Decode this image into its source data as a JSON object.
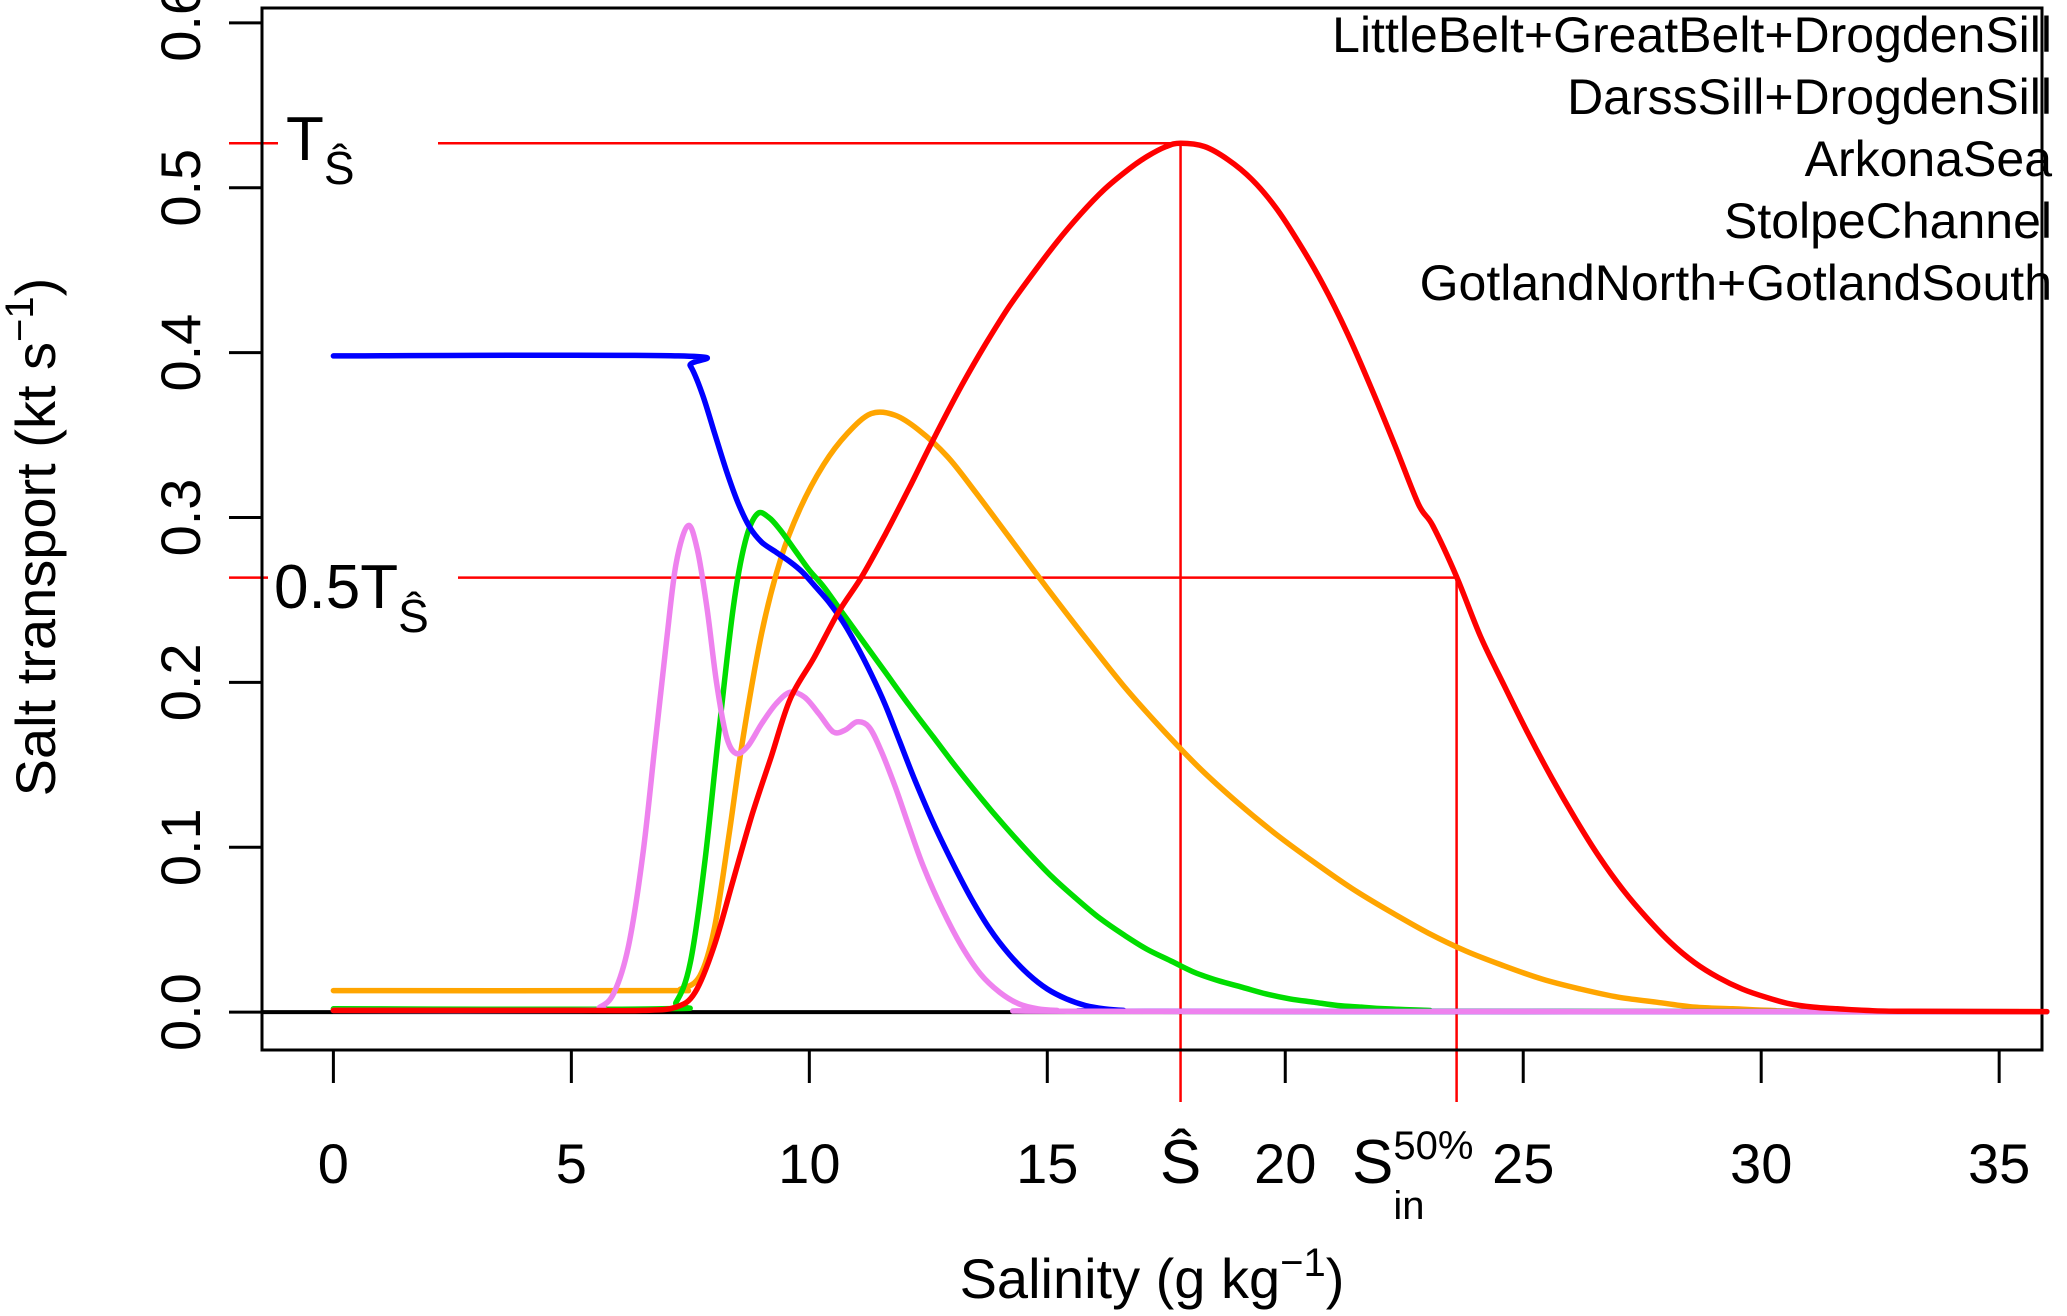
{
  "chart_data": {
    "type": "line",
    "title": "",
    "xlabel": {
      "main": "Salinity (g kg",
      "sup": "−1",
      "end": ")"
    },
    "ylabel": {
      "main": "Salt transport (kt s",
      "sup": "−1",
      "end": ")"
    },
    "x_ticks": [
      "0",
      "5",
      "10",
      "15",
      "20",
      "25",
      "30",
      "35"
    ],
    "x_tick_values": [
      0,
      5,
      10,
      15,
      20,
      25,
      30,
      35
    ],
    "y_ticks": [
      "0.0",
      "0.1",
      "0.2",
      "0.3",
      "0.4",
      "0.5",
      "0.6"
    ],
    "y_tick_values": [
      0.0,
      0.1,
      0.2,
      0.3,
      0.4,
      0.5,
      0.6
    ],
    "xlim": [
      -1.5,
      35.9
    ],
    "ylim": [
      -0.023,
      0.609
    ],
    "grid": false,
    "legend_position": "top-right",
    "baseline_value": 0,
    "series": [
      {
        "name": "LittleBelt+GreatBelt+DrogdenSill",
        "color": "#ff0000",
        "points": [
          [
            0,
            0.001
          ],
          [
            5,
            0.001
          ],
          [
            6.5,
            0.001
          ],
          [
            7.2,
            0.003
          ],
          [
            7.6,
            0.012
          ],
          [
            8.0,
            0.04
          ],
          [
            8.4,
            0.08
          ],
          [
            8.8,
            0.12
          ],
          [
            9.2,
            0.155
          ],
          [
            9.6,
            0.19
          ],
          [
            10.1,
            0.215
          ],
          [
            10.6,
            0.242
          ],
          [
            11.1,
            0.264
          ],
          [
            11.6,
            0.29
          ],
          [
            12.1,
            0.318
          ],
          [
            12.6,
            0.347
          ],
          [
            13.2,
            0.38
          ],
          [
            13.7,
            0.405
          ],
          [
            14.2,
            0.428
          ],
          [
            14.7,
            0.448
          ],
          [
            15.2,
            0.467
          ],
          [
            15.7,
            0.484
          ],
          [
            16.2,
            0.499
          ],
          [
            16.7,
            0.511
          ],
          [
            17.1,
            0.519
          ],
          [
            17.5,
            0.525
          ],
          [
            17.8,
            0.527
          ],
          [
            18.3,
            0.525
          ],
          [
            18.8,
            0.517
          ],
          [
            19.3,
            0.505
          ],
          [
            19.8,
            0.488
          ],
          [
            20.3,
            0.466
          ],
          [
            20.8,
            0.441
          ],
          [
            21.3,
            0.412
          ],
          [
            21.8,
            0.379
          ],
          [
            22.3,
            0.344
          ],
          [
            22.8,
            0.308
          ],
          [
            23.1,
            0.295
          ],
          [
            23.6,
            0.264
          ],
          [
            24.1,
            0.228
          ],
          [
            24.6,
            0.198
          ],
          [
            25.1,
            0.169
          ],
          [
            25.6,
            0.142
          ],
          [
            26.1,
            0.117
          ],
          [
            26.6,
            0.094
          ],
          [
            27.1,
            0.074
          ],
          [
            27.6,
            0.057
          ],
          [
            28.1,
            0.042
          ],
          [
            28.6,
            0.03
          ],
          [
            29.1,
            0.021
          ],
          [
            29.6,
            0.014
          ],
          [
            30.1,
            0.009
          ],
          [
            30.6,
            0.005
          ],
          [
            31.1,
            0.003
          ],
          [
            31.6,
            0.002
          ],
          [
            32.2,
            0.001
          ],
          [
            33,
            0.0005
          ],
          [
            36,
            0.0003
          ]
        ]
      },
      {
        "name": "DarssSill+DrogdenSill",
        "color": "#ffa500",
        "points": [
          [
            0,
            0.013
          ],
          [
            6.8,
            0.013
          ],
          [
            7.3,
            0.014
          ],
          [
            7.7,
            0.022
          ],
          [
            8.0,
            0.05
          ],
          [
            8.3,
            0.105
          ],
          [
            8.6,
            0.165
          ],
          [
            9.0,
            0.23
          ],
          [
            9.4,
            0.275
          ],
          [
            9.8,
            0.305
          ],
          [
            10.3,
            0.332
          ],
          [
            10.8,
            0.351
          ],
          [
            11.3,
            0.363
          ],
          [
            11.8,
            0.362
          ],
          [
            12.3,
            0.353
          ],
          [
            12.9,
            0.337
          ],
          [
            13.5,
            0.315
          ],
          [
            14.2,
            0.288
          ],
          [
            15.0,
            0.257
          ],
          [
            15.8,
            0.227
          ],
          [
            16.6,
            0.198
          ],
          [
            17.4,
            0.172
          ],
          [
            18.2,
            0.148
          ],
          [
            19.0,
            0.127
          ],
          [
            19.8,
            0.108
          ],
          [
            20.6,
            0.091
          ],
          [
            21.4,
            0.075
          ],
          [
            22.2,
            0.061
          ],
          [
            23.0,
            0.048
          ],
          [
            23.8,
            0.037
          ],
          [
            24.6,
            0.028
          ],
          [
            25.4,
            0.02
          ],
          [
            26.2,
            0.014
          ],
          [
            27.0,
            0.009
          ],
          [
            27.8,
            0.006
          ],
          [
            28.6,
            0.003
          ],
          [
            29.4,
            0.002
          ],
          [
            30.2,
            0.001
          ],
          [
            31,
            0.0005
          ],
          [
            36,
            0.0002
          ]
        ]
      },
      {
        "name": "ArkonaSea",
        "color": "#00dd00",
        "points": [
          [
            0,
            0.002
          ],
          [
            6.9,
            0.002
          ],
          [
            7.2,
            0.006
          ],
          [
            7.5,
            0.03
          ],
          [
            7.8,
            0.09
          ],
          [
            8.1,
            0.17
          ],
          [
            8.4,
            0.245
          ],
          [
            8.65,
            0.285
          ],
          [
            8.9,
            0.302
          ],
          [
            9.15,
            0.3
          ],
          [
            9.4,
            0.292
          ],
          [
            9.7,
            0.28
          ],
          [
            10.0,
            0.268
          ],
          [
            10.3,
            0.258
          ],
          [
            10.7,
            0.242
          ],
          [
            11.1,
            0.226
          ],
          [
            11.6,
            0.206
          ],
          [
            12.1,
            0.186
          ],
          [
            12.6,
            0.167
          ],
          [
            13.1,
            0.148
          ],
          [
            13.6,
            0.13
          ],
          [
            14.1,
            0.113
          ],
          [
            14.6,
            0.097
          ],
          [
            15.1,
            0.082
          ],
          [
            15.6,
            0.069
          ],
          [
            16.1,
            0.057
          ],
          [
            16.6,
            0.047
          ],
          [
            17.1,
            0.038
          ],
          [
            17.6,
            0.031
          ],
          [
            18.1,
            0.024
          ],
          [
            18.6,
            0.019
          ],
          [
            19.1,
            0.015
          ],
          [
            19.6,
            0.011
          ],
          [
            20.1,
            0.008
          ],
          [
            20.6,
            0.006
          ],
          [
            21.1,
            0.004
          ],
          [
            21.6,
            0.003
          ],
          [
            22.1,
            0.002
          ],
          [
            23,
            0.001
          ],
          [
            24,
            0.0005
          ],
          [
            36,
            0.0002
          ]
        ]
      },
      {
        "name": "StolpeChannel",
        "color": "#0000ff",
        "points": [
          [
            0,
            0.398
          ],
          [
            7.25,
            0.398
          ],
          [
            7.5,
            0.392
          ],
          [
            7.75,
            0.375
          ],
          [
            8.0,
            0.352
          ],
          [
            8.25,
            0.329
          ],
          [
            8.5,
            0.309
          ],
          [
            8.75,
            0.294
          ],
          [
            9.0,
            0.285
          ],
          [
            9.3,
            0.279
          ],
          [
            9.6,
            0.273
          ],
          [
            9.85,
            0.267
          ],
          [
            10.1,
            0.259
          ],
          [
            10.4,
            0.249
          ],
          [
            10.7,
            0.237
          ],
          [
            11.0,
            0.222
          ],
          [
            11.3,
            0.205
          ],
          [
            11.6,
            0.186
          ],
          [
            11.9,
            0.164
          ],
          [
            12.2,
            0.142
          ],
          [
            12.6,
            0.115
          ],
          [
            13.0,
            0.091
          ],
          [
            13.4,
            0.069
          ],
          [
            13.8,
            0.05
          ],
          [
            14.2,
            0.035
          ],
          [
            14.6,
            0.023
          ],
          [
            15.0,
            0.014
          ],
          [
            15.4,
            0.008
          ],
          [
            15.8,
            0.004
          ],
          [
            16.2,
            0.002
          ],
          [
            16.6,
            0.001
          ],
          [
            17.2,
            0.0005
          ],
          [
            36,
            0.0002
          ]
        ]
      },
      {
        "name": "GotlandNorth+GotlandSouth",
        "color": "#ee82ee",
        "points": [
          [
            0,
            0.001
          ],
          [
            5.2,
            0.001
          ],
          [
            5.6,
            0.003
          ],
          [
            5.9,
            0.012
          ],
          [
            6.2,
            0.04
          ],
          [
            6.5,
            0.095
          ],
          [
            6.75,
            0.16
          ],
          [
            7.0,
            0.225
          ],
          [
            7.2,
            0.272
          ],
          [
            7.45,
            0.295
          ],
          [
            7.65,
            0.28
          ],
          [
            7.85,
            0.245
          ],
          [
            8.05,
            0.2
          ],
          [
            8.25,
            0.168
          ],
          [
            8.45,
            0.157
          ],
          [
            8.7,
            0.161
          ],
          [
            9.0,
            0.175
          ],
          [
            9.3,
            0.187
          ],
          [
            9.6,
            0.194
          ],
          [
            9.9,
            0.191
          ],
          [
            10.2,
            0.181
          ],
          [
            10.5,
            0.17
          ],
          [
            10.75,
            0.171
          ],
          [
            11.0,
            0.176
          ],
          [
            11.25,
            0.173
          ],
          [
            11.5,
            0.159
          ],
          [
            11.8,
            0.137
          ],
          [
            12.1,
            0.112
          ],
          [
            12.4,
            0.088
          ],
          [
            12.8,
            0.062
          ],
          [
            13.2,
            0.04
          ],
          [
            13.6,
            0.023
          ],
          [
            14.0,
            0.012
          ],
          [
            14.4,
            0.005
          ],
          [
            14.8,
            0.002
          ],
          [
            15.2,
            0.001
          ],
          [
            16,
            0.0005
          ],
          [
            36,
            0.0002
          ]
        ]
      }
    ],
    "draw_order": [
      1,
      2,
      3,
      4,
      0
    ],
    "annotations": {
      "color": "#ff0000",
      "T_hat": {
        "value": 0.527,
        "label_main": "T",
        "label_sub": "Ŝ"
      },
      "half_T_hat": {
        "value": 0.2635,
        "label_main": "0.5T",
        "label_sub": "Ŝ"
      },
      "S_hat": {
        "value": 17.8,
        "label": "Ŝ"
      },
      "S_in_50": {
        "value": 23.6,
        "label_base": "S",
        "label_sup": "50%",
        "label_sub": "in"
      }
    }
  },
  "colors": {
    "background": "#ffffff",
    "axis": "#000000",
    "annotation": "#ff0000"
  }
}
